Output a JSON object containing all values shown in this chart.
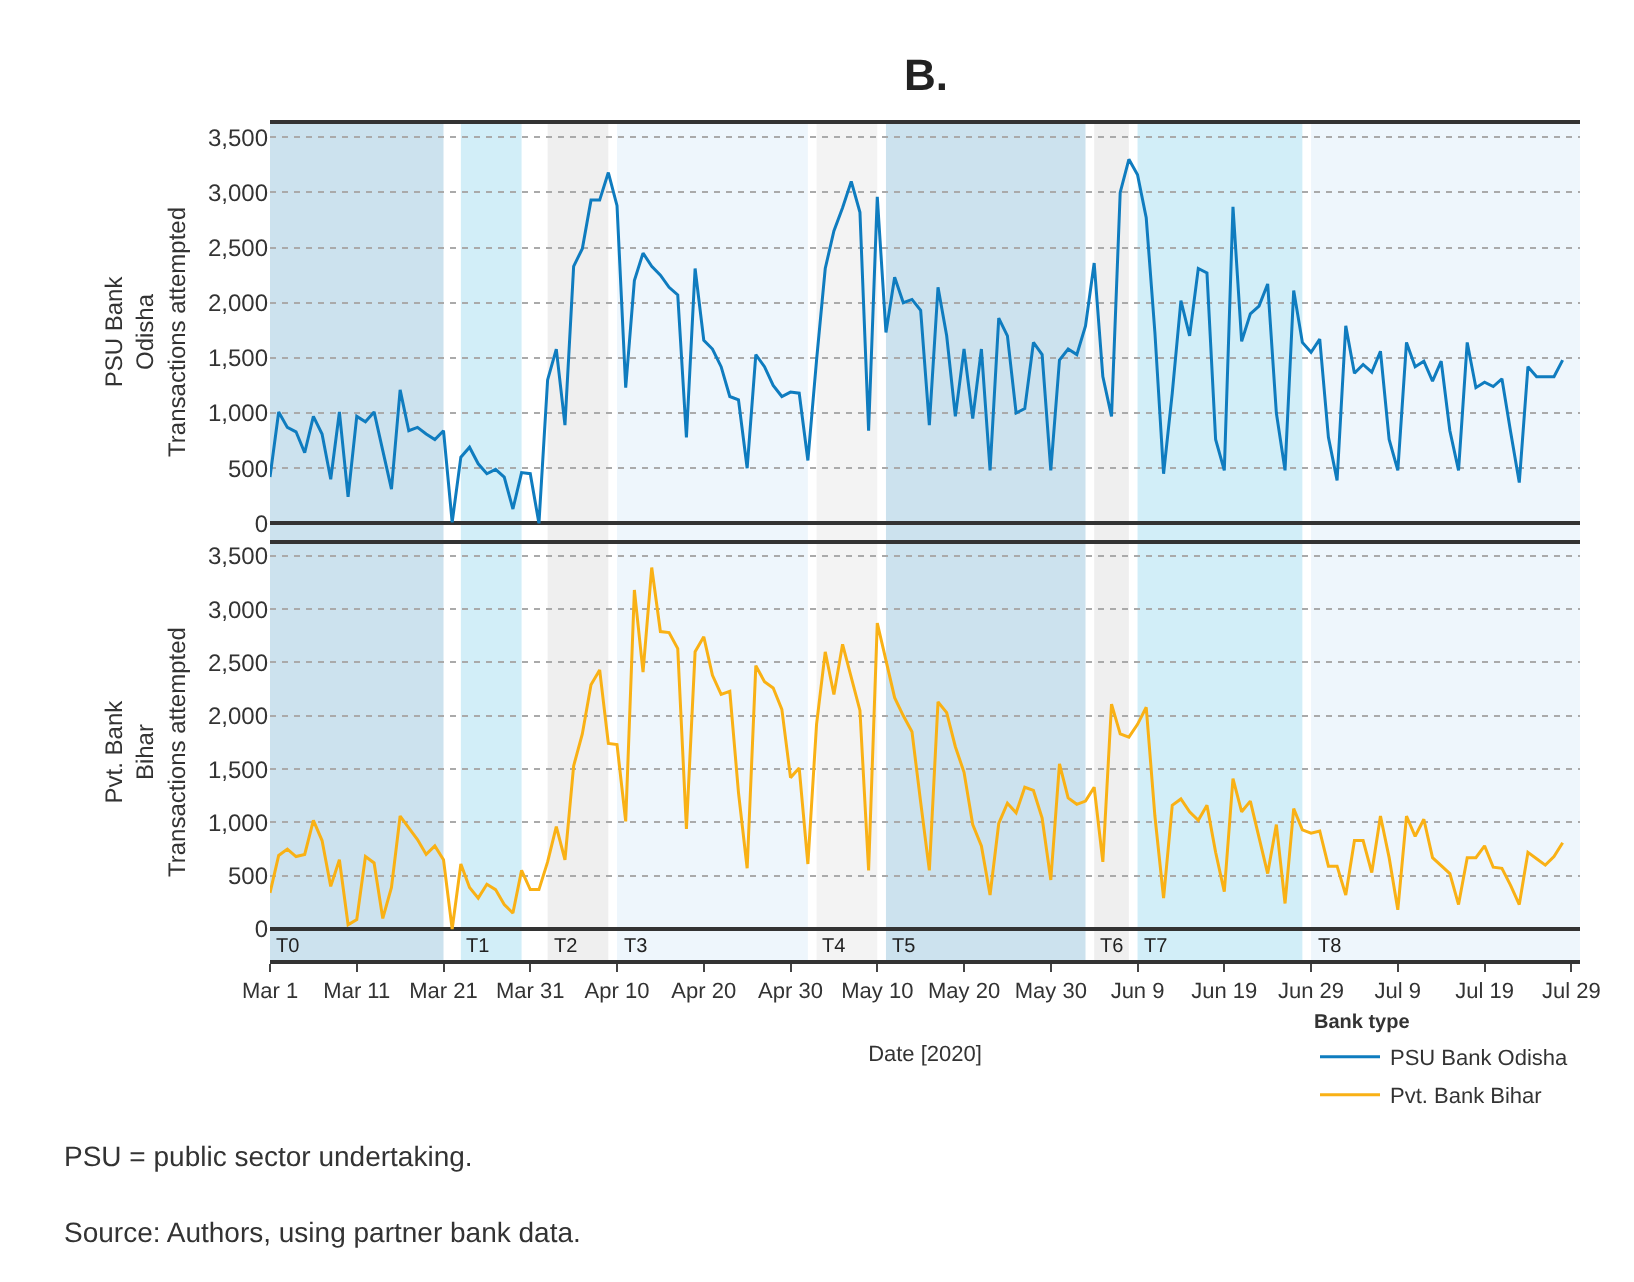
{
  "chart_data": [
    {
      "type": "line",
      "title": "B.",
      "ylabel": "PSU Bank\nOdisha\nTransactions attempted",
      "xlim": [
        "2020-03-01",
        "2020-07-30"
      ],
      "ylim": [
        -150,
        3620
      ],
      "yticks": [
        {
          "value": 0,
          "label": "0"
        },
        {
          "value": 500,
          "label": "500"
        },
        {
          "value": 1000,
          "label": "1,000"
        },
        {
          "value": 1500,
          "label": "1,500"
        },
        {
          "value": 2000,
          "label": "2,000"
        },
        {
          "value": 2500,
          "label": "2,500"
        },
        {
          "value": 3000,
          "label": "3,000"
        },
        {
          "value": 3500,
          "label": "3,500"
        }
      ],
      "tick_labels": "y",
      "grid": "y",
      "legend": "bottom right",
      "bands": [
        {
          "axis": "x",
          "from": "2020-03-01",
          "to": "2020-03-21",
          "color": "#cce2ee"
        },
        {
          "axis": "x",
          "from": "2020-03-23",
          "to": "2020-03-30",
          "color": "#d2eef8"
        },
        {
          "axis": "x",
          "from": "2020-04-02",
          "to": "2020-04-09",
          "color": "#efefef"
        },
        {
          "axis": "x",
          "from": "2020-04-10",
          "to": "2020-05-02",
          "color": "#eef6fc"
        },
        {
          "axis": "x",
          "from": "2020-05-03",
          "to": "2020-05-10",
          "color": "#f3f3f3"
        },
        {
          "axis": "x",
          "from": "2020-05-11",
          "to": "2020-06-03",
          "color": "#cce2ee"
        },
        {
          "axis": "x",
          "from": "2020-06-04",
          "to": "2020-06-08",
          "color": "#efefef"
        },
        {
          "axis": "x",
          "from": "2020-06-09",
          "to": "2020-06-28",
          "color": "#d2eef8"
        },
        {
          "axis": "x",
          "from": "2020-06-29",
          "to": "2020-07-30",
          "color": "#eef6fc"
        }
      ],
      "series": [
        {
          "name": "PSU Bank Odisha",
          "color": "#0f7cbf",
          "x": [
            "2020-03-01",
            "2020-03-02",
            "2020-03-03",
            "2020-03-04",
            "2020-03-05",
            "2020-03-06",
            "2020-03-07",
            "2020-03-08",
            "2020-03-09",
            "2020-03-10",
            "2020-03-11",
            "2020-03-12",
            "2020-03-13",
            "2020-03-14",
            "2020-03-15",
            "2020-03-16",
            "2020-03-17",
            "2020-03-18",
            "2020-03-19",
            "2020-03-20",
            "2020-03-21",
            "2020-03-22",
            "2020-03-23",
            "2020-03-24",
            "2020-03-25",
            "2020-03-26",
            "2020-03-27",
            "2020-03-28",
            "2020-03-29",
            "2020-03-30",
            "2020-03-31",
            "2020-04-01",
            "2020-04-02",
            "2020-04-03",
            "2020-04-04",
            "2020-04-05",
            "2020-04-06",
            "2020-04-07",
            "2020-04-08",
            "2020-04-09",
            "2020-04-10",
            "2020-04-11",
            "2020-04-12",
            "2020-04-13",
            "2020-04-14",
            "2020-04-15",
            "2020-04-16",
            "2020-04-17",
            "2020-04-18",
            "2020-04-19",
            "2020-04-20",
            "2020-04-21",
            "2020-04-22",
            "2020-04-23",
            "2020-04-24",
            "2020-04-25",
            "2020-04-26",
            "2020-04-27",
            "2020-04-28",
            "2020-04-29",
            "2020-04-30",
            "2020-05-01",
            "2020-05-02",
            "2020-05-03",
            "2020-05-04",
            "2020-05-05",
            "2020-05-06",
            "2020-05-07",
            "2020-05-08",
            "2020-05-09",
            "2020-05-10",
            "2020-05-11",
            "2020-05-12",
            "2020-05-13",
            "2020-05-14",
            "2020-05-15",
            "2020-05-16",
            "2020-05-17",
            "2020-05-18",
            "2020-05-19",
            "2020-05-20",
            "2020-05-21",
            "2020-05-22",
            "2020-05-23",
            "2020-05-24",
            "2020-05-25",
            "2020-05-26",
            "2020-05-27",
            "2020-05-28",
            "2020-05-29",
            "2020-05-30",
            "2020-05-31",
            "2020-06-01",
            "2020-06-02",
            "2020-06-03",
            "2020-06-04",
            "2020-06-05",
            "2020-06-06",
            "2020-06-07",
            "2020-06-08",
            "2020-06-09",
            "2020-06-10",
            "2020-06-11",
            "2020-06-12",
            "2020-06-13",
            "2020-06-14",
            "2020-06-15",
            "2020-06-16",
            "2020-06-17",
            "2020-06-18",
            "2020-06-19",
            "2020-06-20",
            "2020-06-21",
            "2020-06-22",
            "2020-06-23",
            "2020-06-24",
            "2020-06-25",
            "2020-06-26",
            "2020-06-27",
            "2020-06-28",
            "2020-06-29",
            "2020-06-30",
            "2020-07-01",
            "2020-07-02",
            "2020-07-03",
            "2020-07-04",
            "2020-07-05",
            "2020-07-06",
            "2020-07-07",
            "2020-07-08",
            "2020-07-09",
            "2020-07-10",
            "2020-07-11",
            "2020-07-12",
            "2020-07-13",
            "2020-07-14",
            "2020-07-15",
            "2020-07-16",
            "2020-07-17",
            "2020-07-18",
            "2020-07-19",
            "2020-07-20",
            "2020-07-21",
            "2020-07-22",
            "2020-07-23",
            "2020-07-24",
            "2020-07-25",
            "2020-07-26",
            "2020-07-27",
            "2020-07-28"
          ],
          "values": [
            420,
            1010,
            870,
            830,
            640,
            970,
            810,
            400,
            1010,
            240,
            970,
            920,
            1010,
            660,
            310,
            1210,
            840,
            870,
            810,
            760,
            840,
            10,
            600,
            690,
            540,
            450,
            490,
            420,
            130,
            460,
            450,
            0,
            1300,
            1580,
            890,
            2330,
            2490,
            2930,
            2930,
            3180,
            2880,
            1230,
            2200,
            2450,
            2330,
            2250,
            2140,
            2070,
            780,
            2310,
            1660,
            1580,
            1420,
            1150,
            1120,
            500,
            1530,
            1420,
            1250,
            1150,
            1190,
            1180,
            570,
            1480,
            2310,
            2650,
            2860,
            3100,
            2820,
            840,
            2960,
            1730,
            2230,
            2000,
            2030,
            1930,
            890,
            2140,
            1700,
            970,
            1580,
            950,
            1580,
            480,
            1860,
            1700,
            1000,
            1040,
            1640,
            1530,
            480,
            1480,
            1580,
            1530,
            1790,
            2360,
            1330,
            970,
            3000,
            3300,
            3160,
            2770,
            1730,
            450,
            1180,
            2020,
            1700,
            2310,
            2270,
            760,
            480,
            2870,
            1650,
            1900,
            1970,
            2170,
            1000,
            480,
            2110,
            1640,
            1550,
            1670,
            780,
            390,
            1790,
            1360,
            1440,
            1370,
            1560,
            760,
            480,
            1640,
            1420,
            1470,
            1290,
            1470,
            840,
            480,
            1640,
            1230,
            1280,
            1240,
            1310,
            830,
            370,
            1420,
            1330,
            1330,
            1330,
            1480
          ]
        }
      ]
    },
    {
      "type": "line",
      "xlabel": "Date [2020]",
      "ylabel": "Pvt. Bank\nBihar\nTransactions attempted",
      "legend_title": "Bank type",
      "xlim": [
        "2020-03-01",
        "2020-07-30"
      ],
      "ylim": [
        -290,
        3610
      ],
      "yticks": [
        {
          "value": 0,
          "label": "0"
        },
        {
          "value": 500,
          "label": "500"
        },
        {
          "value": 1000,
          "label": "1,000"
        },
        {
          "value": 1500,
          "label": "1,500"
        },
        {
          "value": 2000,
          "label": "2,000"
        },
        {
          "value": 2500,
          "label": "2,500"
        },
        {
          "value": 3000,
          "label": "3,000"
        },
        {
          "value": 3500,
          "label": "3,500"
        }
      ],
      "xticks": [
        {
          "value": "2020-03-01",
          "label": "Mar 1"
        },
        {
          "value": "2020-03-11",
          "label": "Mar 11"
        },
        {
          "value": "2020-03-21",
          "label": "Mar 21"
        },
        {
          "value": "2020-03-31",
          "label": "Mar 31"
        },
        {
          "value": "2020-04-10",
          "label": "Apr 10"
        },
        {
          "value": "2020-04-20",
          "label": "Apr 20"
        },
        {
          "value": "2020-04-30",
          "label": "Apr 30"
        },
        {
          "value": "2020-05-10",
          "label": "May 10"
        },
        {
          "value": "2020-05-20",
          "label": "May 20"
        },
        {
          "value": "2020-05-30",
          "label": "May 30"
        },
        {
          "value": "2020-06-09",
          "label": "Jun 9"
        },
        {
          "value": "2020-06-19",
          "label": "Jun 19"
        },
        {
          "value": "2020-06-29",
          "label": "Jun 29"
        },
        {
          "value": "2020-07-09",
          "label": "Jul 9"
        },
        {
          "value": "2020-07-19",
          "label": "Jul 19"
        },
        {
          "value": "2020-07-29",
          "label": "Jul 29"
        }
      ],
      "grid": "y",
      "legend": "bottom right",
      "bands": [
        {
          "axis": "x",
          "from": "2020-03-01",
          "to": "2020-03-21",
          "color": "#cce2ee",
          "label": "T0"
        },
        {
          "axis": "x",
          "from": "2020-03-23",
          "to": "2020-03-30",
          "color": "#d2eef8",
          "label": "T1"
        },
        {
          "axis": "x",
          "from": "2020-04-02",
          "to": "2020-04-09",
          "color": "#efefef",
          "label": "T2"
        },
        {
          "axis": "x",
          "from": "2020-04-10",
          "to": "2020-05-02",
          "color": "#eef6fc",
          "label": "T3"
        },
        {
          "axis": "x",
          "from": "2020-05-03",
          "to": "2020-05-10",
          "color": "#f3f3f3",
          "label": "T4"
        },
        {
          "axis": "x",
          "from": "2020-05-11",
          "to": "2020-06-03",
          "color": "#cce2ee",
          "label": "T5"
        },
        {
          "axis": "x",
          "from": "2020-06-04",
          "to": "2020-06-08",
          "color": "#efefef",
          "label": "T6"
        },
        {
          "axis": "x",
          "from": "2020-06-09",
          "to": "2020-06-28",
          "color": "#d2eef8",
          "label": "T7"
        },
        {
          "axis": "x",
          "from": "2020-06-29",
          "to": "2020-07-30",
          "color": "#eef6fc",
          "label": "T8"
        }
      ],
      "annotations": [
        "PSU = public sector undertaking.",
        "Source: Authors, using partner bank data."
      ],
      "series": [
        {
          "name": "Pvt. Bank Bihar",
          "color": "#f9b115",
          "x": [
            "2020-03-01",
            "2020-03-02",
            "2020-03-03",
            "2020-03-04",
            "2020-03-05",
            "2020-03-06",
            "2020-03-07",
            "2020-03-08",
            "2020-03-09",
            "2020-03-10",
            "2020-03-11",
            "2020-03-12",
            "2020-03-13",
            "2020-03-14",
            "2020-03-15",
            "2020-03-16",
            "2020-03-17",
            "2020-03-18",
            "2020-03-19",
            "2020-03-20",
            "2020-03-21",
            "2020-03-22",
            "2020-03-23",
            "2020-03-24",
            "2020-03-25",
            "2020-03-26",
            "2020-03-27",
            "2020-03-28",
            "2020-03-29",
            "2020-03-30",
            "2020-03-31",
            "2020-04-01",
            "2020-04-02",
            "2020-04-03",
            "2020-04-04",
            "2020-04-05",
            "2020-04-06",
            "2020-04-07",
            "2020-04-08",
            "2020-04-09",
            "2020-04-10",
            "2020-04-11",
            "2020-04-12",
            "2020-04-13",
            "2020-04-14",
            "2020-04-15",
            "2020-04-16",
            "2020-04-17",
            "2020-04-18",
            "2020-04-19",
            "2020-04-20",
            "2020-04-21",
            "2020-04-22",
            "2020-04-23",
            "2020-04-24",
            "2020-04-25",
            "2020-04-26",
            "2020-04-27",
            "2020-04-28",
            "2020-04-29",
            "2020-04-30",
            "2020-05-01",
            "2020-05-02",
            "2020-05-03",
            "2020-05-04",
            "2020-05-05",
            "2020-05-06",
            "2020-05-08",
            "2020-05-09",
            "2020-05-10",
            "2020-05-12",
            "2020-05-13",
            "2020-05-14",
            "2020-05-15",
            "2020-05-16",
            "2020-05-17",
            "2020-05-18",
            "2020-05-19",
            "2020-05-20",
            "2020-05-21",
            "2020-05-22",
            "2020-05-23",
            "2020-05-24",
            "2020-05-25",
            "2020-05-26",
            "2020-05-27",
            "2020-05-28",
            "2020-05-29",
            "2020-05-30",
            "2020-05-31",
            "2020-06-01",
            "2020-06-02",
            "2020-06-03",
            "2020-06-04",
            "2020-06-05",
            "2020-06-06",
            "2020-06-07",
            "2020-06-08",
            "2020-06-09",
            "2020-06-10",
            "2020-06-11",
            "2020-06-12",
            "2020-06-13",
            "2020-06-14",
            "2020-06-15",
            "2020-06-16",
            "2020-06-17",
            "2020-06-18",
            "2020-06-19",
            "2020-06-20",
            "2020-06-21",
            "2020-06-22",
            "2020-06-23",
            "2020-06-24",
            "2020-06-25",
            "2020-06-26",
            "2020-06-27",
            "2020-06-28",
            "2020-06-29",
            "2020-06-30",
            "2020-07-01",
            "2020-07-02",
            "2020-07-03",
            "2020-07-04",
            "2020-07-05",
            "2020-07-06",
            "2020-07-07",
            "2020-07-08",
            "2020-07-09",
            "2020-07-10",
            "2020-07-11",
            "2020-07-12",
            "2020-07-13",
            "2020-07-15",
            "2020-07-16",
            "2020-07-17",
            "2020-07-18",
            "2020-07-19",
            "2020-07-20",
            "2020-07-21",
            "2020-07-22",
            "2020-07-23",
            "2020-07-24",
            "2020-07-25",
            "2020-07-26",
            "2020-07-27",
            "2020-07-28"
          ],
          "values": [
            340,
            690,
            750,
            680,
            700,
            1020,
            830,
            400,
            650,
            40,
            90,
            680,
            620,
            100,
            390,
            1060,
            950,
            840,
            700,
            780,
            650,
            0,
            610,
            390,
            290,
            420,
            370,
            230,
            150,
            550,
            370,
            370,
            630,
            960,
            650,
            1530,
            1830,
            2290,
            2430,
            1740,
            1730,
            1010,
            3180,
            2410,
            3390,
            2790,
            2780,
            2630,
            940,
            2600,
            2740,
            2380,
            2200,
            2230,
            1280,
            570,
            2470,
            2320,
            2260,
            2060,
            1420,
            1510,
            610,
            1920,
            2600,
            2200,
            2670,
            2050,
            550,
            2870,
            2170,
            2000,
            1850,
            1190,
            550,
            2130,
            2030,
            1710,
            1470,
            980,
            780,
            320,
            990,
            1180,
            1090,
            1330,
            1300,
            1040,
            460,
            1550,
            1230,
            1170,
            1200,
            1330,
            630,
            2110,
            1830,
            1800,
            1920,
            2080,
            1060,
            290,
            1160,
            1220,
            1100,
            1020,
            1160,
            720,
            350,
            1410,
            1100,
            1200,
            860,
            520,
            980,
            240,
            1130,
            930,
            900,
            920,
            590,
            590,
            320,
            830,
            830,
            530,
            1060,
            670,
            180,
            1060,
            870,
            1030,
            670,
            520,
            230,
            670,
            670,
            780,
            580,
            570,
            410,
            230,
            720,
            660,
            600,
            680,
            810
          ]
        }
      ]
    }
  ]
}
